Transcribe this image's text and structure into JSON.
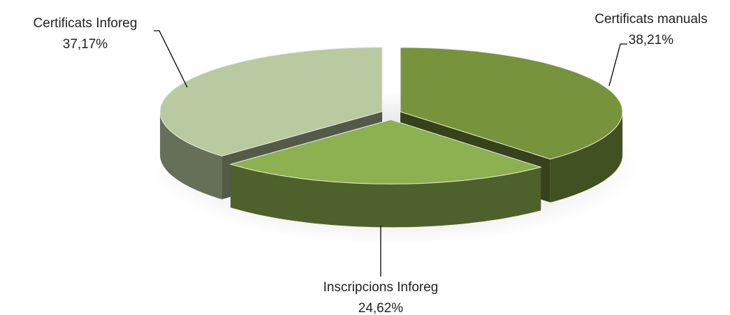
{
  "chart_data": {
    "type": "pie",
    "categories": [
      "Certificats manuals",
      "Inscripcions Inforeg",
      "Certificats Inforeg"
    ],
    "values": [
      38.21,
      24.62,
      37.17
    ],
    "value_labels": [
      "38,21%",
      "24,62%",
      "37,17%"
    ],
    "colors": [
      "#77933c",
      "#8db050",
      "#b9c9a0"
    ]
  }
}
